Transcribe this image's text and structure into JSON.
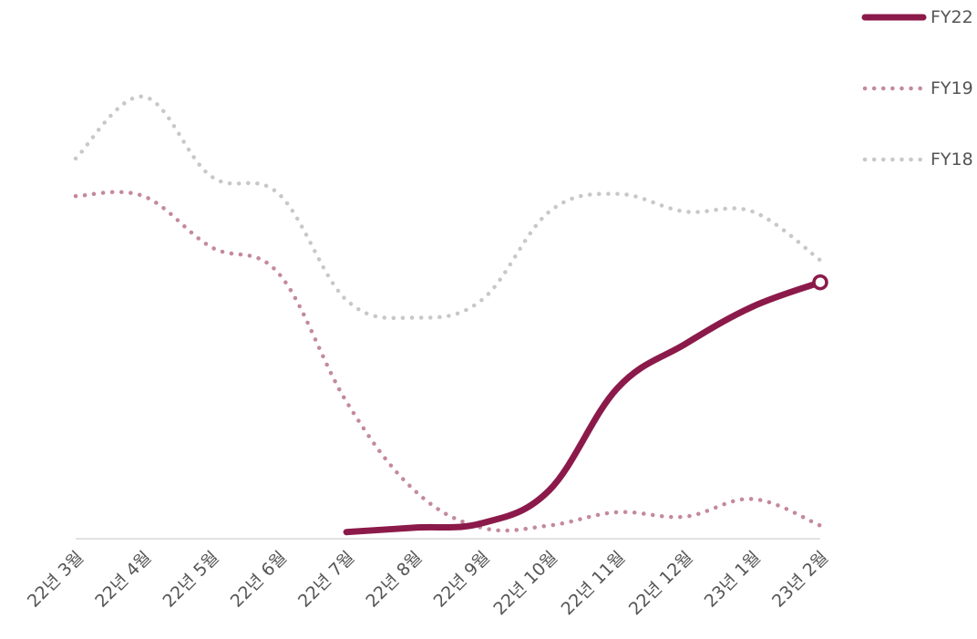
{
  "chart_data": {
    "type": "line",
    "categories": [
      "22년 3월",
      "22년 4월",
      "22년 5월",
      "22년 6월",
      "22년 7월",
      "22년 8월",
      "22년 9월",
      "22년 10월",
      "22년 11월",
      "22년 12월",
      "23년 1월",
      "23년 2월"
    ],
    "ylim": [
      0,
      100
    ],
    "grid": false,
    "legend_position": "top-right",
    "series": [
      {
        "name": "FY22",
        "style": "solid",
        "color": "#8b1a4a",
        "values": [
          null,
          null,
          null,
          null,
          1.5,
          2.5,
          3.5,
          11,
          34,
          44,
          52.5,
          58
        ]
      },
      {
        "name": "FY19",
        "style": "dotted",
        "color": "#c4899f",
        "values": [
          77.5,
          77.5,
          66,
          60,
          31,
          11,
          2.5,
          3,
          6,
          5,
          9,
          3
        ]
      },
      {
        "name": "FY18",
        "style": "dotted",
        "color": "#c8c8c8",
        "values": [
          86,
          100,
          82,
          78,
          54,
          50,
          54,
          74,
          78,
          74,
          74,
          63
        ]
      }
    ]
  }
}
